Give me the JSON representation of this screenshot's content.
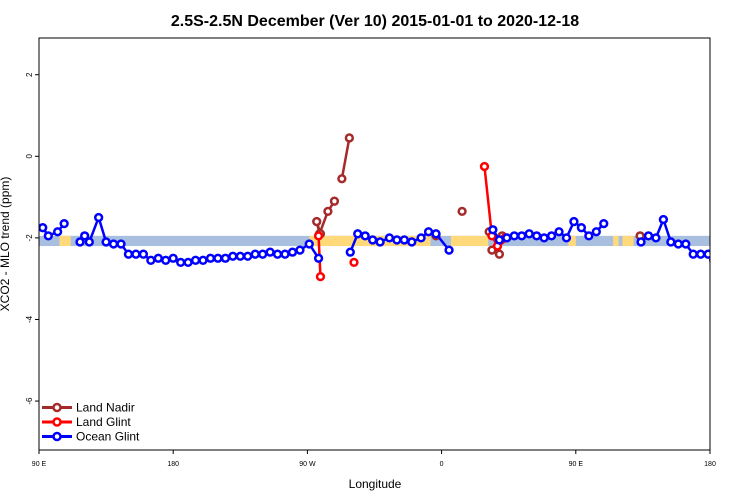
{
  "chart_data": {
    "type": "line",
    "title": "2.5S-2.5N December (Ver 10)   2015-01-01 to 2020-12-18",
    "xlabel": "Longitude",
    "ylabel": "XCO2 - MLO trend (ppm)",
    "xlim": [
      90,
      450
    ],
    "ylim": [
      -7.2,
      2.9
    ],
    "x_ticks": [
      {
        "value": 90,
        "label": "90 E"
      },
      {
        "value": 162,
        "label": "180"
      },
      {
        "value": 234,
        "label": "90 W"
      },
      {
        "value": 306,
        "label": "0"
      },
      {
        "value": 378,
        "label": "90 E"
      },
      {
        "value": 450,
        "label": "180"
      }
    ],
    "y_ticks": [
      2,
      0,
      -2,
      -4,
      -6
    ],
    "colors": {
      "land_nadir": "#a52a2a",
      "land_glint": "#ff0000",
      "ocean_glint": "#0000ff",
      "band_ocean": "#a9bfe0",
      "band_land": "#ffd97a"
    },
    "band": {
      "y_range": [
        -2.2,
        -1.95
      ],
      "land_segments": [
        [
          101,
          107
        ],
        [
          235,
          300
        ],
        [
          311,
          331
        ],
        [
          336,
          337
        ],
        [
          374,
          378
        ],
        [
          398,
          401
        ],
        [
          403,
          409
        ]
      ]
    },
    "series": [
      {
        "name": "Land Nadir",
        "color": "#a52a2a",
        "segments": [
          [
            [
              248.5,
              -1.1
            ],
            [
              245,
              -1.35
            ],
            [
              240.5,
              -1.9
            ],
            [
              239,
              -1.6
            ],
            [
              241,
              -1.9
            ]
          ],
          [
            [
              252.5,
              -0.55
            ],
            [
              256.5,
              0.45
            ]
          ],
          [
            [
              303,
              -1.95
            ]
          ],
          [
            [
              331.5,
              -1.85
            ]
          ],
          [
            [
              317,
              -1.35
            ]
          ],
          [
            [
              333,
              -2.3
            ],
            [
              337,
              -2.4
            ]
          ],
          [
            [
              338.5,
              -1.95
            ]
          ],
          [
            [
              412.5,
              -1.95
            ]
          ]
        ]
      },
      {
        "name": "Land Glint",
        "color": "#ff0000",
        "segments": [
          [
            [
              240,
              -1.95
            ],
            [
              241,
              -2.95
            ]
          ],
          [
            [
              259,
              -2.6
            ]
          ],
          [
            [
              329,
              -0.25
            ],
            [
              333,
              -1.95
            ],
            [
              336,
              -2.2
            ],
            [
              338,
              -2.05
            ],
            [
              340,
              -2.0
            ]
          ]
        ]
      },
      {
        "name": "Ocean Glint",
        "color": "#0000ff",
        "segments": [
          [
            [
              92,
              -1.75
            ],
            [
              95,
              -1.95
            ],
            [
              100,
              -1.85
            ],
            [
              103.5,
              -1.65
            ]
          ],
          [
            [
              112,
              -2.1
            ],
            [
              114.5,
              -1.95
            ],
            [
              117,
              -2.1
            ],
            [
              122,
              -1.5
            ],
            [
              126,
              -2.1
            ],
            [
              130,
              -2.15
            ],
            [
              134,
              -2.15
            ],
            [
              138,
              -2.4
            ],
            [
              142,
              -2.4
            ],
            [
              146,
              -2.4
            ],
            [
              150,
              -2.55
            ],
            [
              154,
              -2.5
            ],
            [
              158,
              -2.55
            ],
            [
              162,
              -2.5
            ],
            [
              166,
              -2.6
            ],
            [
              170,
              -2.6
            ],
            [
              174,
              -2.55
            ],
            [
              178,
              -2.55
            ],
            [
              182,
              -2.5
            ],
            [
              186,
              -2.5
            ],
            [
              190,
              -2.5
            ],
            [
              194,
              -2.45
            ],
            [
              198,
              -2.45
            ],
            [
              202,
              -2.45
            ],
            [
              206,
              -2.4
            ],
            [
              210,
              -2.4
            ],
            [
              214,
              -2.35
            ],
            [
              218,
              -2.4
            ],
            [
              222,
              -2.4
            ],
            [
              226,
              -2.35
            ],
            [
              230,
              -2.3
            ],
            [
              235,
              -2.15
            ],
            [
              240,
              -2.5
            ]
          ],
          [
            [
              257,
              -2.35
            ],
            [
              261,
              -1.9
            ],
            [
              265,
              -1.95
            ],
            [
              269,
              -2.05
            ],
            [
              273,
              -2.1
            ],
            [
              278,
              -2.0
            ],
            [
              282,
              -2.05
            ],
            [
              286,
              -2.05
            ],
            [
              290,
              -2.1
            ],
            [
              295,
              -2.0
            ],
            [
              299,
              -1.85
            ],
            [
              303,
              -1.9
            ],
            [
              310,
              -2.3
            ]
          ],
          [
            [
              333.5,
              -1.8
            ],
            [
              337,
              -2.05
            ],
            [
              341,
              -2.0
            ],
            [
              345,
              -1.95
            ],
            [
              349,
              -1.95
            ],
            [
              353,
              -1.9
            ],
            [
              357,
              -1.95
            ],
            [
              361,
              -2.0
            ],
            [
              365,
              -1.95
            ],
            [
              369,
              -1.85
            ],
            [
              373,
              -2.0
            ],
            [
              377,
              -1.6
            ],
            [
              381,
              -1.75
            ],
            [
              385,
              -1.95
            ],
            [
              389,
              -1.85
            ],
            [
              393,
              -1.65
            ]
          ],
          [
            [
              413,
              -2.1
            ],
            [
              417,
              -1.95
            ],
            [
              421,
              -2.0
            ],
            [
              425,
              -1.55
            ],
            [
              429,
              -2.1
            ],
            [
              433,
              -2.15
            ],
            [
              437,
              -2.15
            ],
            [
              441,
              -2.4
            ],
            [
              445,
              -2.4
            ],
            [
              449,
              -2.4
            ],
            [
              452,
              -2.55
            ],
            [
              456,
              -2.5
            ],
            [
              460,
              -2.55
            ]
          ]
        ]
      }
    ],
    "legend": {
      "position": "bottom-left",
      "entries": [
        "Land Nadir",
        "Land Glint",
        "Ocean Glint"
      ]
    }
  }
}
